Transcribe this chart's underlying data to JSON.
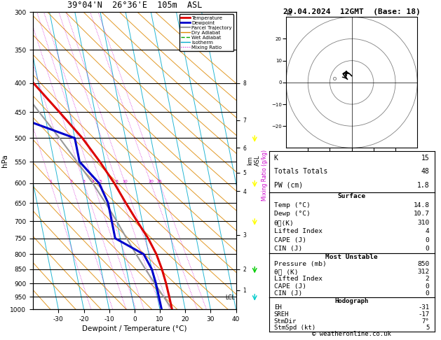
{
  "title": "39°04'N  26°36'E  105m  ASL",
  "date_title": "29.04.2024  12GMT  (Base: 18)",
  "xlabel": "Dewpoint / Temperature (°C)",
  "pressure_levels": [
    300,
    350,
    400,
    450,
    500,
    550,
    600,
    650,
    700,
    750,
    800,
    850,
    900,
    950,
    1000
  ],
  "temp_p": [
    300,
    350,
    400,
    450,
    500,
    550,
    600,
    650,
    700,
    750,
    800,
    850,
    900,
    950,
    1000
  ],
  "temp_T": [
    -38,
    -30,
    -22,
    -14,
    -7,
    -2,
    2,
    5,
    8,
    11,
    13,
    14,
    14.5,
    14.7,
    14.8
  ],
  "dewp_T": [
    -60,
    -52,
    -44,
    -36,
    -10,
    -10,
    -4,
    -2,
    -2,
    -2,
    8,
    10,
    10.5,
    10.6,
    10.7
  ],
  "parcel_p": [
    1000,
    950,
    900,
    850,
    800,
    750,
    700,
    650,
    600,
    550,
    500,
    450,
    400,
    350,
    300
  ],
  "parcel_T": [
    14.8,
    12.5,
    10.0,
    7.5,
    5.0,
    2.5,
    0.0,
    -3.0,
    -6.5,
    -11.0,
    -16.0,
    -22.0,
    -28.5,
    -35.5,
    -43.0
  ],
  "xlim": [
    -40,
    40
  ],
  "pmin": 300,
  "pmax": 1000,
  "skew": 45,
  "mixing_ratios_gkg": [
    1,
    2,
    3,
    4,
    5,
    8,
    10,
    20,
    25
  ],
  "mr_label_p": 600,
  "km_pressures": [
    925,
    850,
    740,
    620,
    575,
    520,
    465,
    400
  ],
  "km_values": [
    1,
    2,
    3,
    4,
    5,
    6,
    7,
    8
  ],
  "lcl_p": 960,
  "temp_color": "#dd0000",
  "dewp_color": "#0000cc",
  "parcel_color": "#999999",
  "dry_color": "#dd8800",
  "wet_color": "#00aa00",
  "iso_color": "#00aacc",
  "mr_color": "#cc00cc",
  "wind_arrow_colors": [
    "#00cc00",
    "#00cccc",
    "#00cc00"
  ],
  "info_K": 15,
  "info_TT": 48,
  "info_PW": 1.8,
  "surf_temp": 14.8,
  "surf_dewp": 10.7,
  "surf_theta_e": 310,
  "surf_li": 4,
  "surf_cape": 0,
  "surf_cin": 0,
  "mu_press": 850,
  "mu_theta_e": 312,
  "mu_li": 2,
  "mu_cape": 0,
  "mu_cin": 0,
  "hodo_EH": -31,
  "hodo_SREH": -17,
  "hodo_StmDir": 7,
  "hodo_StmSpd": 5,
  "copyright": "© weatheronline.co.uk"
}
